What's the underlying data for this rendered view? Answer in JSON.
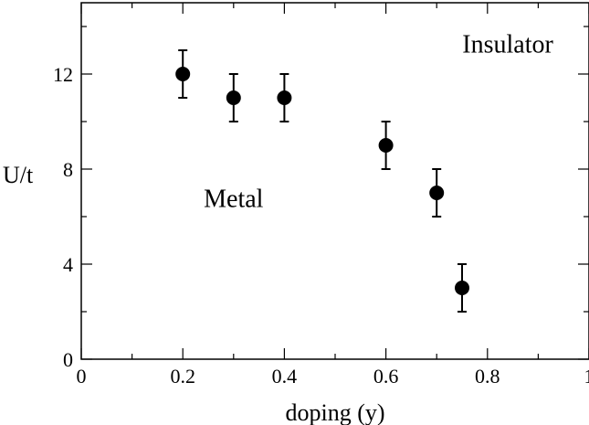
{
  "chart_data": {
    "type": "scatter",
    "title": "",
    "xlabel": "doping (y)",
    "ylabel": "U/t",
    "xlim": [
      0,
      1
    ],
    "ylim": [
      0,
      15
    ],
    "x_ticks": [
      0,
      0.2,
      0.4,
      0.6,
      0.8,
      1
    ],
    "x_tick_labels": [
      "0",
      "0.2",
      "0.4",
      "0.6",
      "0.8",
      "1"
    ],
    "x_minor_ticks": [
      0.1,
      0.3,
      0.5,
      0.7,
      0.9
    ],
    "y_ticks": [
      0,
      4,
      8,
      12
    ],
    "y_tick_labels": [
      "0",
      "4",
      "8",
      "12"
    ],
    "y_minor_ticks": [
      2,
      6,
      10,
      14
    ],
    "grid": false,
    "legend": "none",
    "series": [
      {
        "x": [
          0.2,
          0.3,
          0.4,
          0.6,
          0.7,
          0.75
        ],
        "y": [
          12,
          11,
          11,
          9,
          7,
          3
        ],
        "yerr": [
          1,
          1,
          1,
          1,
          1,
          1
        ],
        "marker": "filled-circle",
        "color": "#000000"
      }
    ],
    "annotations": [
      {
        "text": "Insulator",
        "x": 0.84,
        "y": 12.9
      },
      {
        "text": "Metal",
        "x": 0.3,
        "y": 6.4
      }
    ]
  }
}
